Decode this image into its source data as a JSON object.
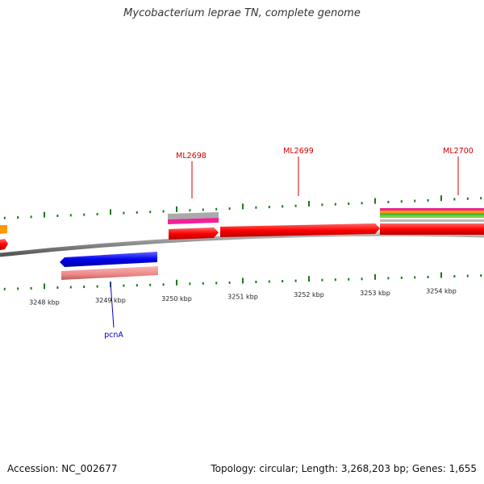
{
  "title": "Mycobacterium leprae TN, complete genome",
  "footer": {
    "accession": "Accession: NC_002677",
    "summary": "Topology: circular; Length: 3,268,203 bp; Genes: 1,655"
  },
  "axis_ticks": [
    {
      "kbp": 3248,
      "label": "3248 kbp"
    },
    {
      "kbp": 3249,
      "label": "3249 kbp"
    },
    {
      "kbp": 3250,
      "label": "3250 kbp"
    },
    {
      "kbp": 3251,
      "label": "3251 kbp"
    },
    {
      "kbp": 3252,
      "label": "3252 kbp"
    },
    {
      "kbp": 3253,
      "label": "3253 kbp"
    },
    {
      "kbp": 3254,
      "label": "3254 kbp"
    }
  ],
  "gene_labels": [
    {
      "name": "ML2698",
      "color": "#cc0000"
    },
    {
      "name": "ML2699",
      "color": "#cc0000"
    },
    {
      "name": "ML2700",
      "color": "#cc0000"
    },
    {
      "name": "pcnA",
      "color": "#0000cc"
    }
  ],
  "colors": {
    "forward_feature": "#ff0000",
    "reverse_feature": "#0000ee",
    "tick": "#1a7a1a",
    "backbone": "#888888"
  }
}
